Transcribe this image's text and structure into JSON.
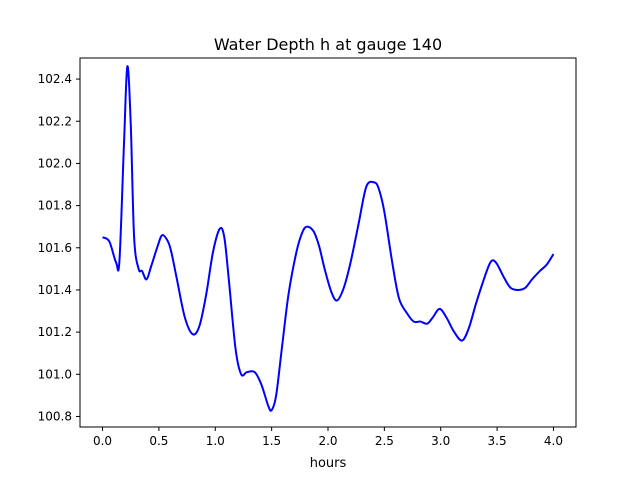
{
  "chart_data": {
    "type": "line",
    "title": "Water Depth h at gauge 140",
    "xlabel": "hours",
    "ylabel": "",
    "xlim": [
      -0.2,
      4.2
    ],
    "ylim": [
      100.75,
      102.5
    ],
    "xticks": [
      0.0,
      0.5,
      1.0,
      1.5,
      2.0,
      2.5,
      3.0,
      3.5,
      4.0
    ],
    "xtick_labels": [
      "0.0",
      "0.5",
      "1.0",
      "1.5",
      "2.0",
      "2.5",
      "3.0",
      "3.5",
      "4.0"
    ],
    "yticks": [
      100.8,
      101.0,
      101.2,
      101.4,
      101.6,
      101.8,
      102.0,
      102.2,
      102.4
    ],
    "ytick_labels": [
      "100.8",
      "101.0",
      "101.2",
      "101.4",
      "101.6",
      "101.8",
      "102.0",
      "102.2",
      "102.4"
    ],
    "grid": false,
    "series": [
      {
        "name": "h",
        "color": "#0000ff",
        "x": [
          0.0,
          0.06,
          0.12,
          0.15,
          0.19,
          0.22,
          0.25,
          0.28,
          0.32,
          0.35,
          0.39,
          0.43,
          0.49,
          0.53,
          0.58,
          0.61,
          0.66,
          0.73,
          0.8,
          0.86,
          0.92,
          0.98,
          1.04,
          1.08,
          1.12,
          1.18,
          1.23,
          1.28,
          1.35,
          1.41,
          1.47,
          1.5,
          1.54,
          1.59,
          1.65,
          1.72,
          1.77,
          1.81,
          1.87,
          1.92,
          1.97,
          2.03,
          2.08,
          2.14,
          2.2,
          2.27,
          2.34,
          2.41,
          2.45,
          2.5,
          2.57,
          2.63,
          2.7,
          2.76,
          2.82,
          2.88,
          2.93,
          2.99,
          3.05,
          3.12,
          3.19,
          3.25,
          3.31,
          3.37,
          3.44,
          3.49,
          3.56,
          3.62,
          3.69,
          3.75,
          3.81,
          3.88,
          3.94,
          4.0
        ],
        "y": [
          101.65,
          101.63,
          101.53,
          101.54,
          102.09,
          102.46,
          102.19,
          101.65,
          101.5,
          101.49,
          101.45,
          101.51,
          101.61,
          101.66,
          101.63,
          101.58,
          101.45,
          101.27,
          101.19,
          101.23,
          101.38,
          101.58,
          101.69,
          101.65,
          101.45,
          101.12,
          101.0,
          101.01,
          101.01,
          100.95,
          100.85,
          100.83,
          100.9,
          101.12,
          101.38,
          101.58,
          101.67,
          101.7,
          101.68,
          101.61,
          101.5,
          101.39,
          101.35,
          101.41,
          101.53,
          101.71,
          101.89,
          101.91,
          101.88,
          101.77,
          101.53,
          101.36,
          101.29,
          101.25,
          101.25,
          101.24,
          101.27,
          101.31,
          101.27,
          101.2,
          101.16,
          101.22,
          101.33,
          101.43,
          101.53,
          101.53,
          101.46,
          101.41,
          101.4,
          101.41,
          101.45,
          101.49,
          101.52,
          101.57
        ]
      }
    ]
  }
}
